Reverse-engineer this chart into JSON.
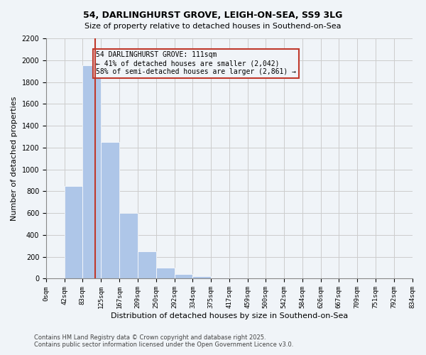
{
  "title1": "54, DARLINGHURST GROVE, LEIGH-ON-SEA, SS9 3LG",
  "title2": "Size of property relative to detached houses in Southend-on-Sea",
  "xlabel": "Distribution of detached houses by size in Southend-on-Sea",
  "ylabel": "Number of detached properties",
  "footnote1": "Contains HM Land Registry data © Crown copyright and database right 2025.",
  "footnote2": "Contains public sector information licensed under the Open Government Licence v3.0.",
  "annotation_line1": "54 DARLINGHURST GROVE: 111sqm",
  "annotation_line2": "← 41% of detached houses are smaller (2,042)",
  "annotation_line3": "58% of semi-detached houses are larger (2,861) →",
  "property_sqm": 111,
  "bin_edges": [
    0,
    42,
    83,
    125,
    167,
    209,
    250,
    292,
    334,
    375,
    417,
    459,
    500,
    542,
    584,
    626,
    667,
    709,
    751,
    792,
    834
  ],
  "bar_values": [
    0,
    850,
    1950,
    1250,
    600,
    250,
    100,
    40,
    20,
    10,
    8,
    5,
    3,
    2,
    2,
    1,
    1,
    1,
    1,
    1
  ],
  "bar_color_left": "#aec6e8",
  "bar_color_right": "#aec6e8",
  "property_line_color": "#c0392b",
  "annotation_box_color": "#c0392b",
  "grid_color": "#cccccc",
  "background_color": "#f0f4f8",
  "ylim": [
    0,
    2200
  ],
  "yticks": [
    0,
    200,
    400,
    600,
    800,
    1000,
    1200,
    1400,
    1600,
    1800,
    2000,
    2200
  ]
}
